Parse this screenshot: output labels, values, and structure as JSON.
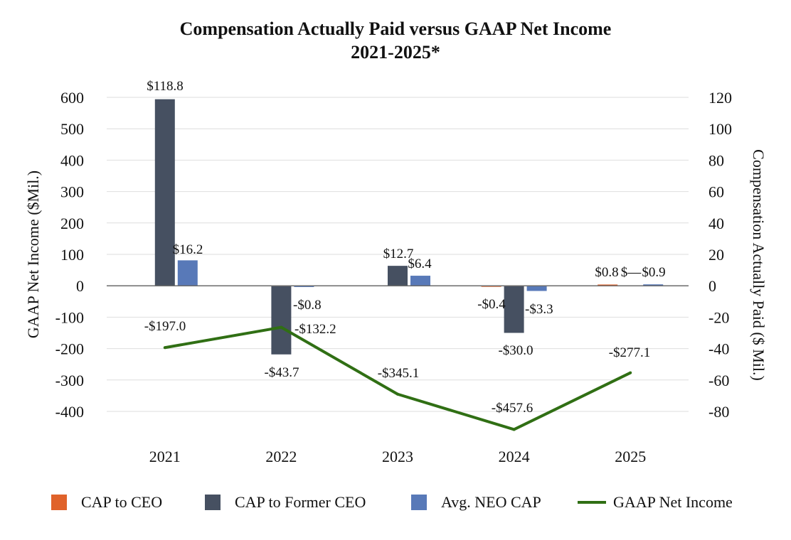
{
  "chart_data": {
    "type": "bar+line",
    "title": "Compensation Actually Paid versus GAAP Net Income",
    "subtitle": "2021-2025*",
    "categories": [
      "2021",
      "2022",
      "2023",
      "2024",
      "2025"
    ],
    "left_axis": {
      "label": "GAAP Net Income ($Mil.)",
      "ylim": [
        -400,
        600
      ],
      "ticks": [
        600,
        500,
        400,
        300,
        200,
        100,
        0,
        -100,
        -200,
        -300,
        -400
      ],
      "tick_labels": [
        "600",
        "500",
        "400",
        "300",
        "200",
        "100",
        "0",
        "-100",
        "-200",
        "-300",
        "-400"
      ]
    },
    "right_axis": {
      "label": "Compensation Actually Paid ($ Mil.)",
      "ylim": [
        -80,
        120
      ],
      "ticks": [
        120,
        100,
        80,
        60,
        40,
        20,
        0,
        -20,
        -40,
        -60,
        -80
      ],
      "tick_labels": [
        "120",
        "100",
        "80",
        "60",
        "40",
        "20",
        "0",
        "-20",
        "-40",
        "-60",
        "-80"
      ]
    },
    "grid": true,
    "series": [
      {
        "name": "CAP to CEO",
        "type": "bar",
        "axis": "right",
        "color": "#e0622a",
        "values": [
          null,
          null,
          null,
          -0.4,
          0.8
        ],
        "labels": [
          "",
          "",
          "",
          "-$0.4",
          "$0.8"
        ]
      },
      {
        "name": "CAP to Former CEO",
        "type": "bar",
        "axis": "right",
        "color": "#465061",
        "values": [
          118.8,
          -43.7,
          12.7,
          -30.0,
          0
        ],
        "labels": [
          "$118.8",
          "-$43.7",
          "$12.7",
          "-$30.0",
          "$—"
        ]
      },
      {
        "name": "Avg. NEO CAP",
        "type": "bar",
        "axis": "right",
        "color": "#5879b8",
        "values": [
          16.2,
          -0.8,
          6.4,
          -3.3,
          0.9
        ],
        "labels": [
          "$16.2",
          "-$0.8",
          "$6.4",
          "-$3.3",
          "$0.9"
        ]
      },
      {
        "name": "GAAP Net Income",
        "type": "line",
        "axis": "left",
        "color": "#306f14",
        "values": [
          -197.0,
          -132.2,
          -345.1,
          -457.6,
          -277.1
        ],
        "labels": [
          "-$197.0",
          "-$132.2",
          "-$345.1",
          "-$457.6",
          "-$277.1"
        ]
      }
    ],
    "legend_position": "bottom"
  }
}
